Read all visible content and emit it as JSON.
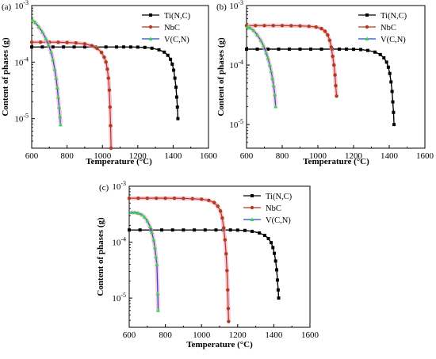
{
  "chart_data": [
    {
      "type": "line",
      "panel_label": "(a)",
      "xlabel": "Temperature (°C)",
      "ylabel": "Content of phases (g)",
      "xlim": [
        600,
        1600
      ],
      "ylim": [
        3e-06,
        0.001
      ],
      "yscale": "log",
      "x_ticks": [
        "600",
        "800",
        "1000",
        "1200",
        "1400",
        "1600"
      ],
      "y_ticks": [
        "10-5",
        "10-4",
        "10-3"
      ],
      "legend_position": "top-right",
      "series": [
        {
          "name": "Ti(N,C)",
          "color": "#000000",
          "marker": "square",
          "x": [
            600,
            660,
            720,
            780,
            840,
            900,
            960,
            1020,
            1080,
            1120,
            1160,
            1200,
            1240,
            1280,
            1320,
            1350,
            1370,
            1385,
            1395,
            1403,
            1410,
            1416,
            1420,
            1424,
            1427
          ],
          "y": [
            0.000185,
            0.000185,
            0.000185,
            0.000185,
            0.000185,
            0.000185,
            0.000185,
            0.000185,
            0.000185,
            0.000185,
            0.000185,
            0.000184,
            0.000182,
            0.000176,
            0.000165,
            0.00015,
            0.000132,
            0.000112,
            9.2e-05,
            7.2e-05,
            5.2e-05,
            3.6e-05,
            2.4e-05,
            1.6e-05,
            1e-05
          ]
        },
        {
          "name": "NbC",
          "color": "#b33a1a",
          "marker": "circle",
          "x": [
            600,
            650,
            700,
            750,
            800,
            850,
            900,
            940,
            970,
            995,
            1010,
            1020,
            1028,
            1034,
            1039,
            1043,
            1046,
            1049
          ],
          "y": [
            0.000225,
            0.000225,
            0.000225,
            0.000224,
            0.000222,
            0.000218,
            0.00021,
            0.000195,
            0.000175,
            0.000148,
            0.000122,
            0.0001,
            7.5e-05,
            5.2e-05,
            3.2e-05,
            1.6e-05,
            7.5e-06,
            3e-06
          ]
        },
        {
          "name": "V(C,N)",
          "color": "#1a4fd1",
          "marker": "triangle",
          "x": [
            605,
            620,
            640,
            660,
            680,
            695,
            710,
            720,
            730,
            738,
            745,
            750,
            755,
            760,
            763
          ],
          "y": [
            0.00055,
            0.0005,
            0.00042,
            0.00034,
            0.00026,
            0.0002,
            0.00015,
            0.00011,
            7.5e-05,
            5.2e-05,
            3.5e-05,
            2.4e-05,
            1.6e-05,
            1.1e-05,
            7.8e-06
          ]
        }
      ]
    },
    {
      "type": "line",
      "panel_label": "(b)",
      "xlabel": "Temperature (°C)",
      "ylabel": "Content of phases (g)",
      "xlim": [
        600,
        1600
      ],
      "ylim": [
        4e-06,
        0.001
      ],
      "yscale": "log",
      "x_ticks": [
        "600",
        "800",
        "1000",
        "1200",
        "1400",
        "1600"
      ],
      "y_ticks": [
        "10-5",
        "10-4",
        "10-3"
      ],
      "legend_position": "top-right",
      "series": [
        {
          "name": "Ti(N,C)",
          "color": "#000000",
          "marker": "square",
          "x": [
            600,
            660,
            720,
            780,
            840,
            900,
            960,
            1020,
            1080,
            1120,
            1160,
            1200,
            1240,
            1280,
            1320,
            1350,
            1370,
            1385,
            1395,
            1403,
            1410,
            1416,
            1420,
            1424,
            1427
          ],
          "y": [
            0.000185,
            0.000185,
            0.000185,
            0.000185,
            0.000185,
            0.000185,
            0.000185,
            0.000185,
            0.000185,
            0.000185,
            0.000185,
            0.000184,
            0.000182,
            0.000176,
            0.000165,
            0.00015,
            0.000132,
            0.000112,
            9.2e-05,
            7.2e-05,
            5.2e-05,
            3.6e-05,
            2.4e-05,
            1.6e-05,
            1e-05
          ]
        },
        {
          "name": "NbC",
          "color": "#b33a1a",
          "marker": "circle",
          "x": [
            600,
            650,
            700,
            750,
            800,
            850,
            900,
            950,
            990,
            1020,
            1040,
            1055,
            1066,
            1075,
            1083,
            1090,
            1096,
            1100,
            1105
          ],
          "y": [
            0.00046,
            0.00046,
            0.00046,
            0.00046,
            0.00046,
            0.000458,
            0.000455,
            0.000448,
            0.000435,
            0.00041,
            0.00037,
            0.00032,
            0.00026,
            0.0002,
            0.00014,
            0.0001,
            6.8e-05,
            4.5e-05,
            3e-05
          ]
        },
        {
          "name": "V(C,N)",
          "color": "#1a4fd1",
          "marker": "triangle",
          "x": [
            605,
            620,
            640,
            660,
            680,
            695,
            710,
            720,
            730,
            738,
            745,
            752,
            758,
            763
          ],
          "y": [
            0.00044,
            0.00042,
            0.00038,
            0.00032,
            0.00026,
            0.00021,
            0.00016,
            0.00013,
            0.0001,
            7.8e-05,
            6e-05,
            4.5e-05,
            3.2e-05,
            2e-05
          ]
        }
      ]
    },
    {
      "type": "line",
      "panel_label": "(c)",
      "xlabel": "Temperature (°C)",
      "ylabel": "Content of phases (g)",
      "xlim": [
        600,
        1600
      ],
      "ylim": [
        3e-06,
        0.001
      ],
      "yscale": "log",
      "x_ticks": [
        "600",
        "800",
        "1000",
        "1200",
        "1400",
        "1600"
      ],
      "y_ticks": [
        "10-5",
        "10-4",
        "10-3"
      ],
      "legend_position": "top-right",
      "series": [
        {
          "name": "Ti(N,C)",
          "color": "#000000",
          "marker": "square",
          "x": [
            600,
            660,
            720,
            780,
            840,
            900,
            960,
            1020,
            1080,
            1120,
            1160,
            1200,
            1240,
            1280,
            1320,
            1350,
            1370,
            1385,
            1395,
            1403,
            1410,
            1416,
            1420,
            1424,
            1427
          ],
          "y": [
            0.000165,
            0.000165,
            0.000165,
            0.000165,
            0.000165,
            0.000165,
            0.000165,
            0.000165,
            0.000165,
            0.000165,
            0.000165,
            0.000164,
            0.000162,
            0.000156,
            0.000146,
            0.000132,
            0.000116,
            9.8e-05,
            8e-05,
            6.3e-05,
            4.6e-05,
            3.2e-05,
            2.1e-05,
            1.4e-05,
            1e-05
          ]
        },
        {
          "name": "NbC",
          "color": "#b33a1a",
          "marker": "circle",
          "x": [
            600,
            650,
            700,
            750,
            800,
            850,
            900,
            950,
            1000,
            1040,
            1070,
            1090,
            1105,
            1115,
            1123,
            1130,
            1136,
            1141,
            1145,
            1148,
            1150
          ],
          "y": [
            0.00061,
            0.00061,
            0.00061,
            0.00061,
            0.00061,
            0.00061,
            0.000605,
            0.000598,
            0.000585,
            0.00056,
            0.00051,
            0.00044,
            0.00036,
            0.00027,
            0.00018,
            0.00011,
            6.2e-05,
            3.1e-05,
            1.4e-05,
            6.5e-06,
            3.8e-06
          ]
        },
        {
          "name": "V(C,N)",
          "color": "#1a4fd1",
          "marker": "triangle",
          "x": [
            610,
            630,
            650,
            670,
            685,
            700,
            715,
            725,
            735,
            742,
            748,
            753,
            758,
            760
          ],
          "y": [
            0.00034,
            0.00034,
            0.00033,
            0.00031,
            0.00028,
            0.00024,
            0.00019,
            0.00015,
            0.00011,
            8e-05,
            5.5e-05,
            4e-05,
            1.2e-05,
            6e-06
          ]
        }
      ]
    }
  ]
}
